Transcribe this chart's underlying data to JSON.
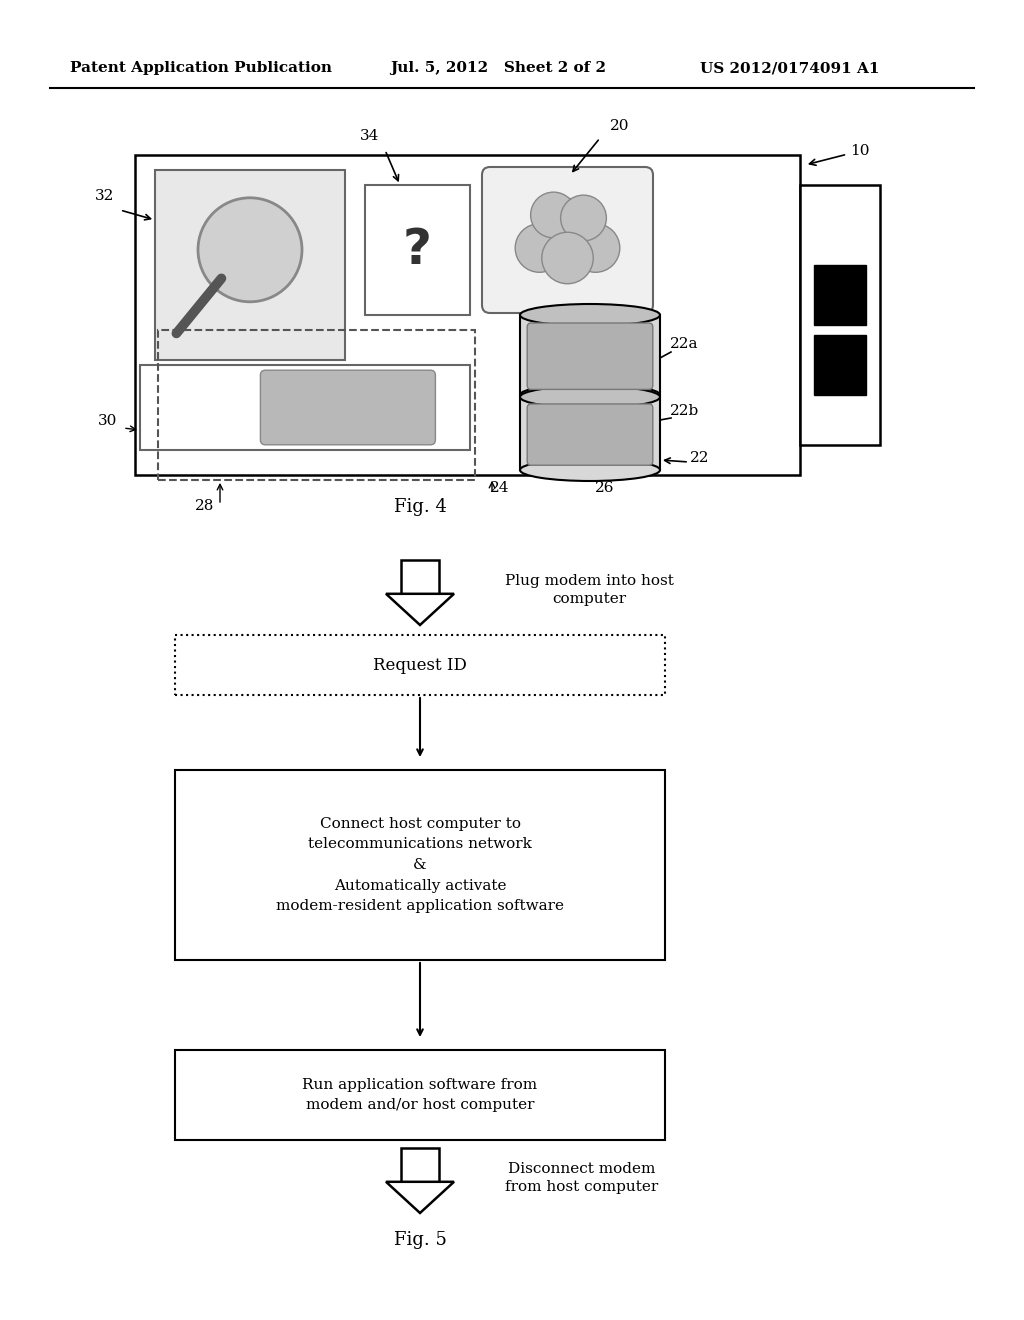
{
  "bg_color": "#ffffff",
  "header_left": "Patent Application Publication",
  "header_mid": "Jul. 5, 2012   Sheet 2 of 2",
  "header_right": "US 2012/0174091 A1",
  "fig4_label": "Fig. 4",
  "fig5_label": "Fig. 5",
  "flow_step1_text": "Plug modem into host\ncomputer",
  "flow_step2_text": "Request ID",
  "flow_step3_text": "Connect host computer to\ntelecommunications network\n&\nAutomatically activate\nmodem-resident application software",
  "flow_step4_text": "Run application software from\nmodem and/or host computer",
  "flow_step5_text": "Disconnect modem\nfrom host computer"
}
